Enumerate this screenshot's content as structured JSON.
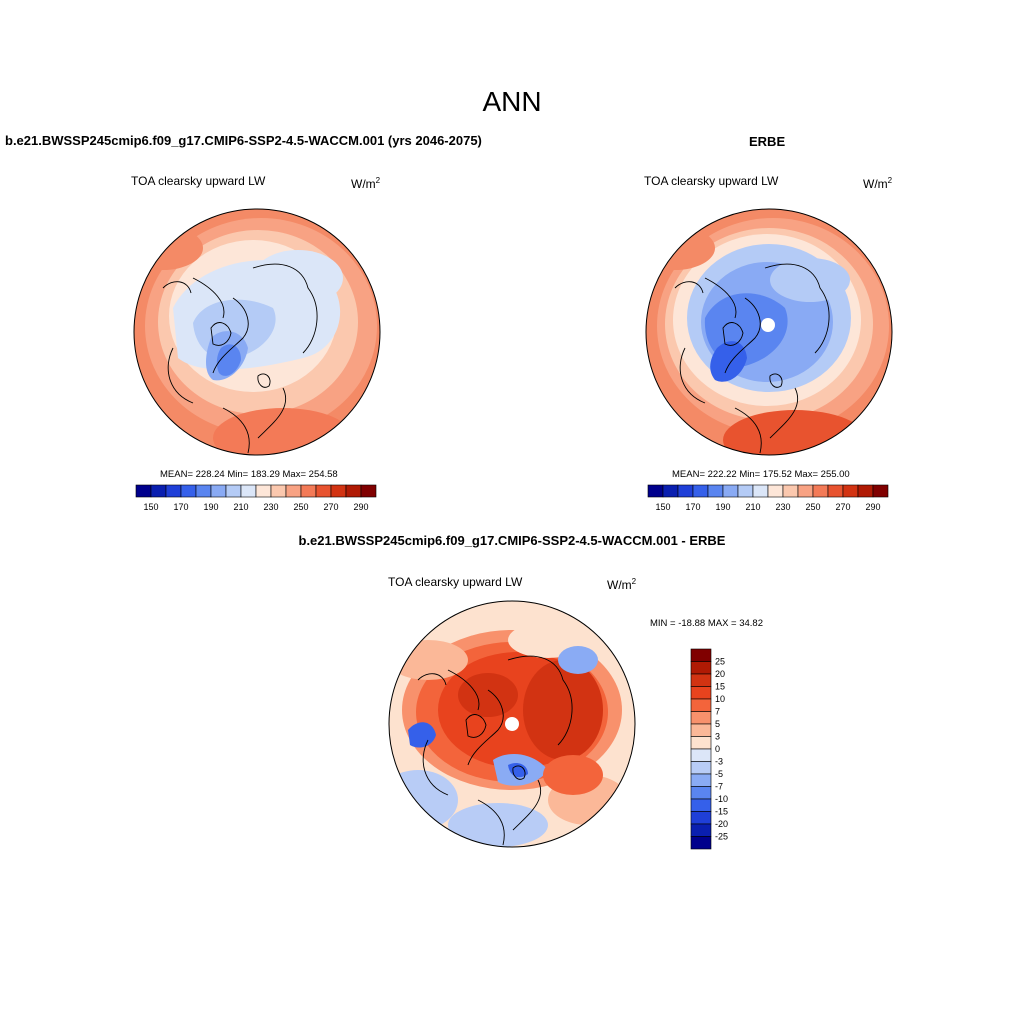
{
  "page": {
    "title": "ANN",
    "diff_title": "b.e21.BWSSP245cmip6.f09_g17.CMIP6-SSP2-4.5-WACCM.001 - ERBE"
  },
  "panels": [
    {
      "case_title": "b.e21.BWSSP245cmip6.f09_g17.CMIP6-SSP2-4.5-WACCM.001 (yrs 2046-2075)",
      "variable": "TOA clearsky upward LW",
      "units": "W/m",
      "units_sup": "2",
      "stats": "MEAN= 228.24  Min= 183.29  Max= 254.58"
    },
    {
      "case_title": "ERBE",
      "variable": "TOA clearsky upward LW",
      "units": "W/m",
      "units_sup": "2",
      "stats": "MEAN= 222.22  Min= 175.52  Max= 255.00"
    },
    {
      "variable": "TOA clearsky upward LW",
      "units": "W/m",
      "units_sup": "2",
      "stats": "MIN = -18.88 MAX =  34.82"
    }
  ],
  "colorbar_abs": {
    "labels": [
      "150",
      "170",
      "190",
      "210",
      "230",
      "250",
      "270",
      "290"
    ],
    "colors": [
      "#00008c",
      "#0a1fb0",
      "#1f3fd8",
      "#3560ea",
      "#5a85f0",
      "#89aaf4",
      "#b4cbf6",
      "#dbe6f8",
      "#fde6d8",
      "#fbc8ae",
      "#f8a283",
      "#f37a57",
      "#e8532f",
      "#d23312",
      "#b01a04",
      "#800000"
    ]
  },
  "colorbar_diff": {
    "labels": [
      "25",
      "20",
      "15",
      "10",
      "7",
      "5",
      "3",
      "0",
      "-3",
      "-5",
      "-7",
      "-10",
      "-15",
      "-20",
      "-25"
    ],
    "colors": [
      "#800000",
      "#b01a04",
      "#d23312",
      "#e8431e",
      "#f3643b",
      "#f8916c",
      "#fbb898",
      "#fde2cf",
      "#dce6f8",
      "#b8ccf6",
      "#8aabf4",
      "#5a85f0",
      "#3560ea",
      "#1f3fd8",
      "#0a1fb0",
      "#00008c"
    ]
  }
}
